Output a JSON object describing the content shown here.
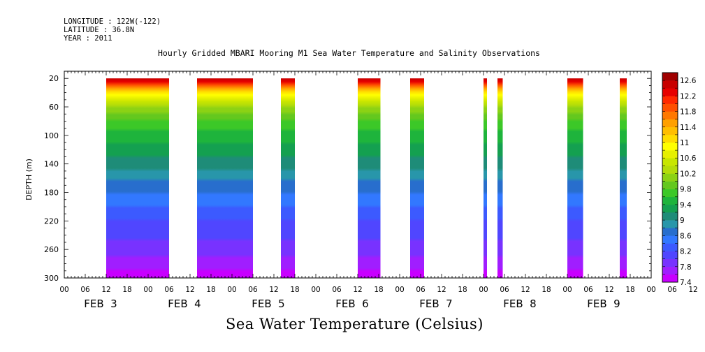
{
  "header": {
    "longitude": "LONGITUDE : 122W(-122)",
    "latitude": "LATITUDE : 36.8N",
    "year": "YEAR : 2011"
  },
  "chart_data": {
    "type": "heatmap",
    "title": "Hourly Gridded MBARI Mooring M1 Sea Water Temperature and Salinity Observations",
    "ylabel": "DEPTH (m)",
    "caption": "Sea Water Temperature (Celsius)",
    "y_reversed": true,
    "ylim": [
      10,
      300
    ],
    "y_ticks": [
      20,
      60,
      100,
      140,
      180,
      220,
      260,
      300
    ],
    "x_range_hours": [
      "2011-02-03T00:00",
      "2011-02-10T00:00"
    ],
    "x_hour_labels": [
      "00",
      "06",
      "12",
      "18",
      "00",
      "06",
      "12",
      "18",
      "00",
      "06",
      "12",
      "18",
      "00",
      "06",
      "12",
      "18",
      "00",
      "06",
      "12",
      "18",
      "00",
      "06",
      "12",
      "18",
      "00",
      "06",
      "12",
      "18",
      "00",
      "06",
      "12",
      "18",
      "00",
      "06",
      "12",
      "18",
      "00",
      "06",
      "12",
      "18",
      "00",
      "06",
      "12",
      "18",
      "00",
      "06",
      "12",
      "18",
      "00",
      "06",
      "12",
      "18",
      "00",
      "06",
      "12",
      "18",
      "00"
    ],
    "x_day_labels": [
      {
        "label": "FEB  3",
        "date": "2011-02-03"
      },
      {
        "label": "FEB  4",
        "date": "2011-02-04"
      },
      {
        "label": "FEB  5",
        "date": "2011-02-05"
      },
      {
        "label": "FEB  6",
        "date": "2011-02-06"
      },
      {
        "label": "FEB  7",
        "date": "2011-02-07"
      },
      {
        "label": "FEB  8",
        "date": "2011-02-08"
      },
      {
        "label": "FEB  9",
        "date": "2011-02-09"
      }
    ],
    "data_segments": [
      {
        "start": "2011-02-03T12:00",
        "end": "2011-02-04T06:00"
      },
      {
        "start": "2011-02-04T14:00",
        "end": "2011-02-05T06:00"
      },
      {
        "start": "2011-02-05T14:00",
        "end": "2011-02-05T18:00"
      },
      {
        "start": "2011-02-06T12:00",
        "end": "2011-02-06T18:30"
      },
      {
        "start": "2011-02-07T03:00",
        "end": "2011-02-07T07:00"
      },
      {
        "start": "2011-02-08T00:00",
        "end": "2011-02-08T01:00"
      },
      {
        "start": "2011-02-08T04:00",
        "end": "2011-02-08T05:30"
      },
      {
        "start": "2011-02-09T00:00",
        "end": "2011-02-09T04:30"
      },
      {
        "start": "2011-02-09T15:00",
        "end": "2011-02-09T17:00"
      }
    ],
    "temperature_profile": {
      "depths": [
        20,
        30,
        40,
        60,
        80,
        100,
        140,
        180,
        220,
        260,
        300
      ],
      "temps": [
        12.6,
        11.9,
        11.0,
        10.2,
        9.8,
        9.5,
        9.1,
        8.6,
        8.2,
        7.9,
        7.5
      ]
    },
    "colorbar": {
      "min": 7.4,
      "max": 12.8,
      "step": 0.2,
      "labels": [
        "12.6",
        "12.2",
        "11.8",
        "11.4",
        "11",
        "10.6",
        "10.2",
        "9.8",
        "9.4",
        "9",
        "8.6",
        "8.2",
        "7.8",
        "7.4"
      ],
      "colors": [
        "#c800ff",
        "#a01eff",
        "#7832ff",
        "#5046ff",
        "#3c5aff",
        "#3278ff",
        "#286ecd",
        "#2896aa",
        "#1e8c78",
        "#14a050",
        "#1eb43c",
        "#3cc828",
        "#64c81e",
        "#8cd214",
        "#b4dc0a",
        "#c8e600",
        "#e6f000",
        "#ffff00",
        "#ffdc00",
        "#ffbe00",
        "#ffa000",
        "#ff7800",
        "#ff5000",
        "#ff2800",
        "#e60000",
        "#c80000",
        "#a00000"
      ]
    }
  }
}
